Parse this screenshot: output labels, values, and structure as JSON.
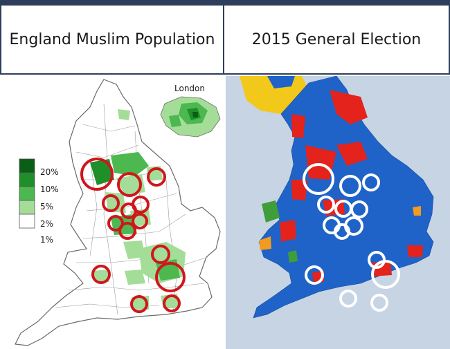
{
  "left_panel": {
    "title": "England Muslim Population",
    "inset_label": "London",
    "legend": [
      {
        "label": "20%",
        "color": "#0b5e16"
      },
      {
        "label": "10%",
        "color": "#1f8f2a"
      },
      {
        "label": "5%",
        "color": "#4cb84f"
      },
      {
        "label": "2%",
        "color": "#a4dd98"
      },
      {
        "label": "1%",
        "color": "#ffffff"
      }
    ],
    "circle_color": "#d0161c"
  },
  "right_panel": {
    "title": "2015 General Election",
    "party_colors": {
      "conservative": "#1f63c8",
      "labour": "#e3231c",
      "snp": "#f2c81a",
      "libdem": "#f39a21",
      "plaid": "#3f9e3a",
      "sea": "#c6d4e4"
    },
    "circle_color": "#ffffff"
  }
}
